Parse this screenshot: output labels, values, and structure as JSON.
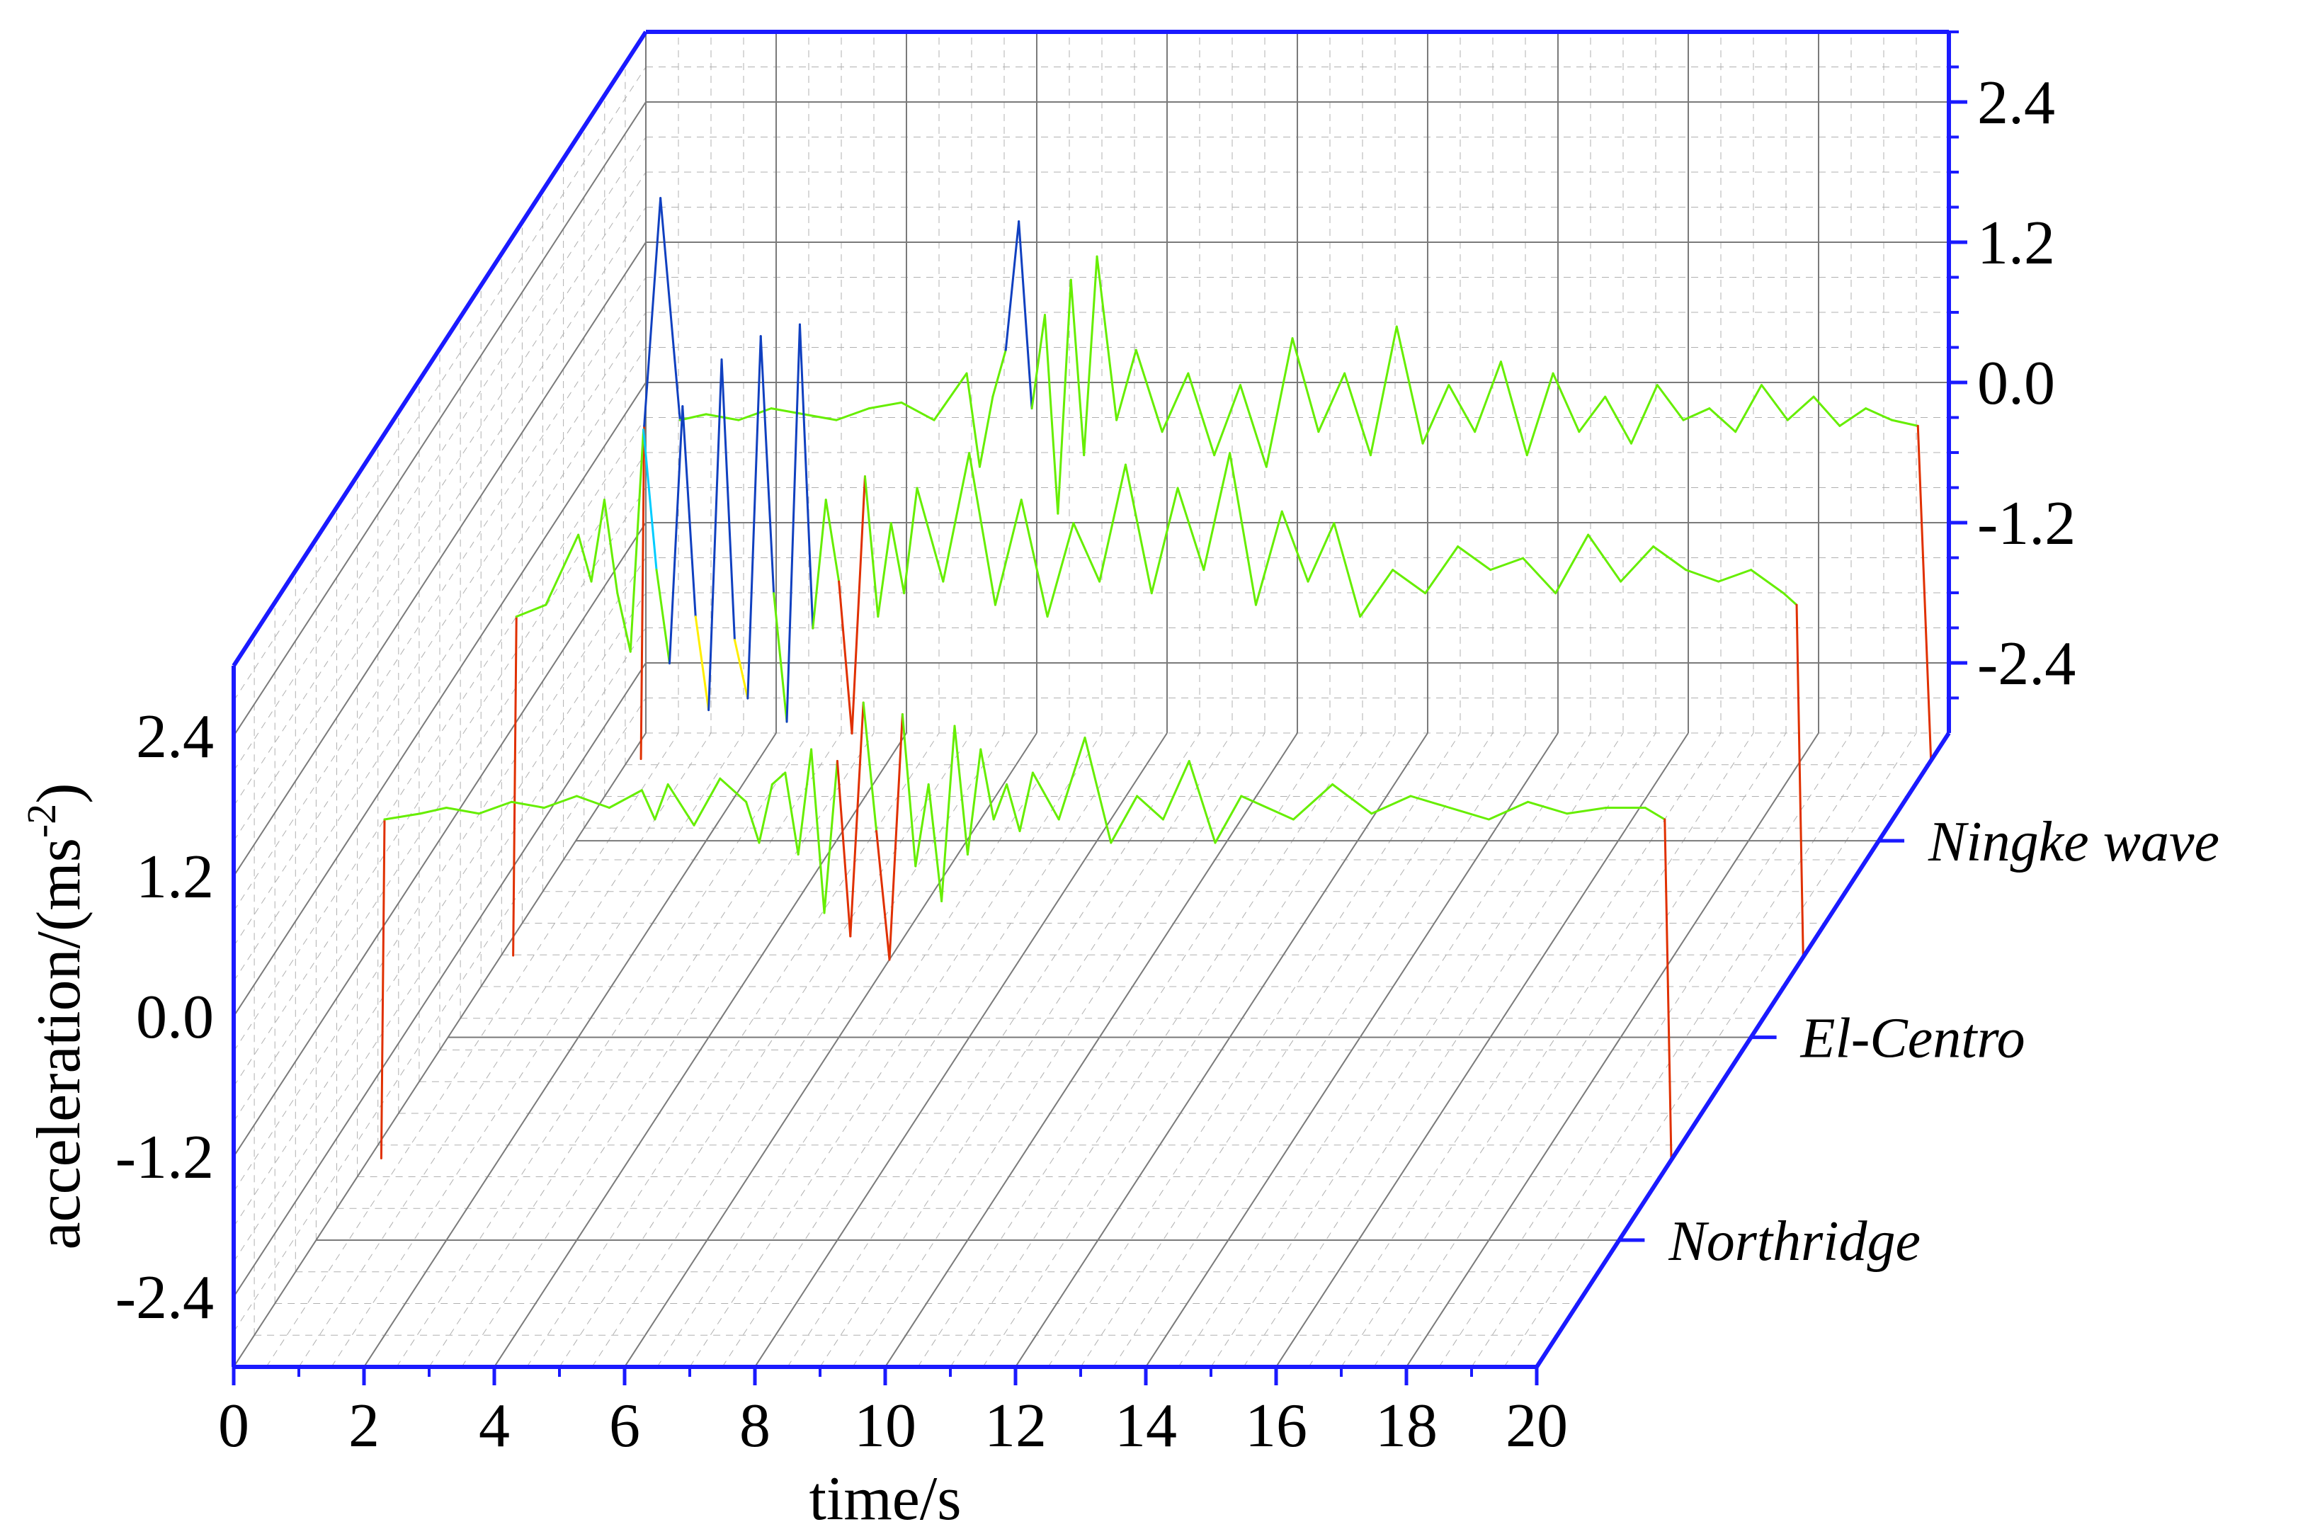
{
  "chart_data": {
    "type": "line",
    "subtype": "3d-waterfall",
    "title": "",
    "xlabel": "time/s",
    "ylabel_main": "acceleration/(ms",
    "ylabel_sup": "-2",
    "ylabel_close": ")",
    "xlim": [
      0,
      20
    ],
    "ylim": [
      -3.0,
      3.0
    ],
    "x_ticks": [
      "0",
      "2",
      "4",
      "6",
      "8",
      "10",
      "12",
      "14",
      "16",
      "18",
      "20"
    ],
    "y_ticks": [
      "-2.4",
      "-1.2",
      "0.0",
      "1.2",
      "2.4"
    ],
    "grid": true,
    "colors": {
      "axis": "#1a1aff",
      "grid": "#7a7a7a",
      "trace_base": "#66ee00",
      "trace_peak_pos": "#1040c0",
      "trace_peak_neg": "#e03000"
    },
    "series": [
      {
        "name": "Northridge",
        "t_start": 1.0,
        "t_end": 20.8,
        "baseline": -2.3,
        "x": [
          1.0,
          1.05,
          1.6,
          2.0,
          2.5,
          3.0,
          3.5,
          4.0,
          4.5,
          5.0,
          5.2,
          5.4,
          5.8,
          6.2,
          6.6,
          6.8,
          7.0,
          7.2,
          7.4,
          7.6,
          7.8,
          8.0,
          8.2,
          8.4,
          8.6,
          8.8,
          9.0,
          9.2,
          9.4,
          9.6,
          9.8,
          10.0,
          10.2,
          10.4,
          10.6,
          10.8,
          11.0,
          11.4,
          11.8,
          12.2,
          12.6,
          13.0,
          13.4,
          13.8,
          14.2,
          14.6,
          15.0,
          15.6,
          16.2,
          16.8,
          17.4,
          18.0,
          18.6,
          19.2,
          19.8,
          20.4,
          20.7,
          20.8
        ],
        "values": [
          -2.3,
          0.6,
          0.65,
          0.7,
          0.65,
          0.75,
          0.7,
          0.8,
          0.7,
          0.85,
          0.6,
          0.9,
          0.55,
          0.95,
          0.75,
          0.4,
          0.9,
          1.0,
          0.3,
          1.2,
          -0.2,
          1.1,
          -0.4,
          1.6,
          0.5,
          -0.6,
          1.5,
          0.2,
          0.9,
          -0.1,
          1.4,
          0.3,
          1.2,
          0.6,
          0.9,
          0.5,
          1.0,
          0.6,
          1.3,
          0.4,
          0.8,
          0.6,
          1.1,
          0.4,
          0.8,
          0.7,
          0.6,
          0.9,
          0.65,
          0.8,
          0.7,
          0.6,
          0.75,
          0.65,
          0.7,
          0.7,
          0.6,
          -2.3
        ]
      },
      {
        "name": "El-Centro",
        "t_start": 1.0,
        "t_end": 20.8,
        "baseline": -2.3,
        "x": [
          1.0,
          1.05,
          1.5,
          2.0,
          2.2,
          2.4,
          2.6,
          2.8,
          3.0,
          3.2,
          3.4,
          3.6,
          3.8,
          4.0,
          4.2,
          4.4,
          4.6,
          4.8,
          5.0,
          5.2,
          5.4,
          5.6,
          5.8,
          6.0,
          6.2,
          6.4,
          6.6,
          6.8,
          7.0,
          7.2,
          7.6,
          8.0,
          8.4,
          8.8,
          9.2,
          9.6,
          10.0,
          10.4,
          10.8,
          11.2,
          11.6,
          12.0,
          12.4,
          12.8,
          13.2,
          13.6,
          14.0,
          14.5,
          15.0,
          15.5,
          16.0,
          16.5,
          17.0,
          17.5,
          18.0,
          18.5,
          19.0,
          19.5,
          20.0,
          20.5,
          20.7,
          20.8
        ],
        "values": [
          -2.3,
          0.6,
          0.7,
          1.3,
          0.9,
          1.6,
          0.8,
          0.3,
          2.2,
          1.0,
          0.2,
          2.4,
          0.6,
          -0.2,
          2.8,
          0.4,
          -0.1,
          3.0,
          0.8,
          -0.3,
          3.1,
          0.5,
          1.6,
          0.9,
          -0.4,
          1.8,
          0.6,
          1.4,
          0.8,
          1.7,
          0.9,
          2.0,
          0.7,
          1.6,
          0.6,
          1.4,
          0.9,
          1.9,
          0.8,
          1.7,
          1.0,
          2.0,
          0.7,
          1.5,
          0.9,
          1.4,
          0.6,
          1.0,
          0.8,
          1.2,
          1.0,
          1.1,
          0.8,
          1.3,
          0.9,
          1.2,
          1.0,
          0.9,
          1.0,
          0.8,
          0.7,
          -2.3
        ]
      },
      {
        "name": "Ningke wave",
        "t_start": 1.0,
        "t_end": 20.8,
        "baseline": -2.3,
        "x": [
          1.0,
          1.05,
          1.3,
          1.6,
          2.0,
          2.5,
          3.0,
          3.5,
          4.0,
          4.5,
          5.0,
          5.5,
          6.0,
          6.2,
          6.4,
          6.6,
          6.8,
          7.0,
          7.2,
          7.4,
          7.6,
          7.8,
          8.0,
          8.3,
          8.6,
          9.0,
          9.4,
          9.8,
          10.2,
          10.6,
          11.0,
          11.4,
          11.8,
          12.2,
          12.6,
          13.0,
          13.4,
          13.8,
          14.2,
          14.6,
          15.0,
          15.4,
          15.8,
          16.2,
          16.6,
          17.0,
          17.4,
          17.8,
          18.2,
          18.6,
          19.0,
          19.4,
          19.8,
          20.2,
          20.6,
          20.8
        ],
        "values": [
          -2.3,
          0.55,
          2.5,
          0.6,
          0.65,
          0.6,
          0.7,
          0.65,
          0.6,
          0.7,
          0.75,
          0.6,
          1.0,
          0.2,
          0.8,
          1.2,
          2.3,
          0.7,
          1.5,
          -0.2,
          1.8,
          0.3,
          2.0,
          0.6,
          1.2,
          0.5,
          1.0,
          0.3,
          0.9,
          0.2,
          1.3,
          0.5,
          1.0,
          0.3,
          1.4,
          0.4,
          0.9,
          0.5,
          1.1,
          0.3,
          1.0,
          0.5,
          0.8,
          0.4,
          0.9,
          0.6,
          0.7,
          0.5,
          0.9,
          0.6,
          0.8,
          0.55,
          0.7,
          0.6,
          0.55,
          -2.3
        ]
      }
    ]
  }
}
